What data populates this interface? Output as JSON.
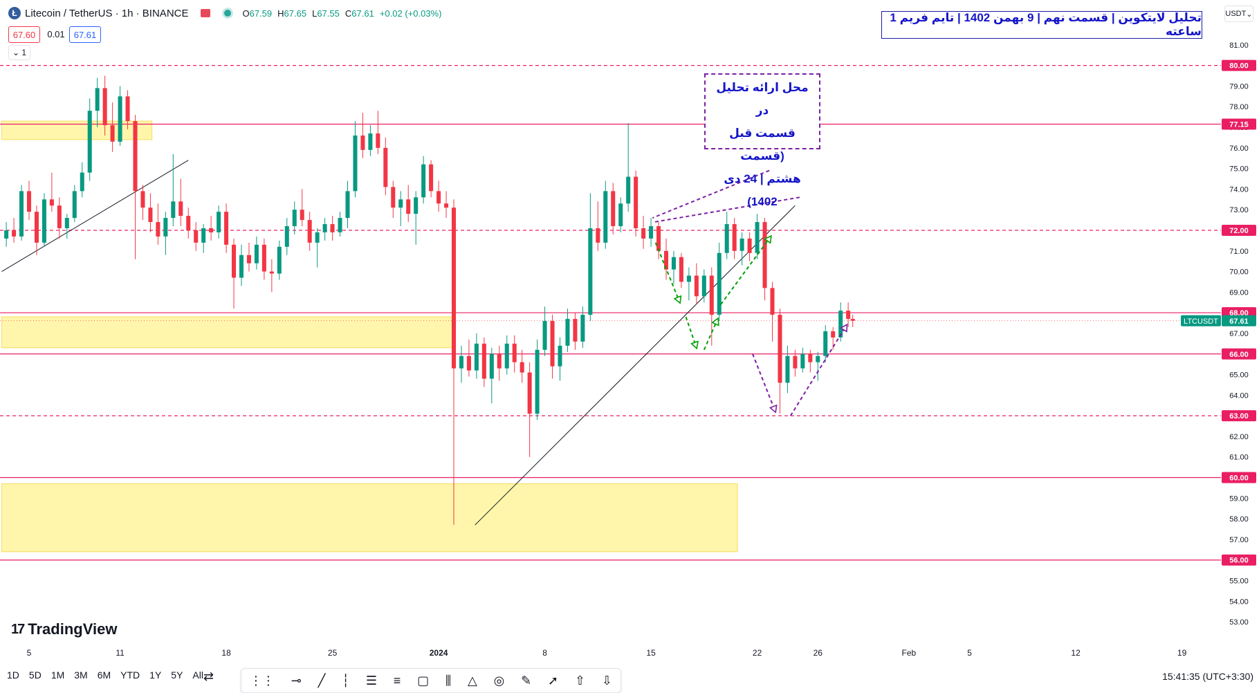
{
  "header": {
    "symbol": "Litecoin / TetherUS · 1h · BINANCE",
    "ohlc": {
      "o_label": "O",
      "o": "67.59",
      "h_label": "H",
      "h": "67.65",
      "l_label": "L",
      "l": "67.55",
      "c_label": "C",
      "c": "67.61",
      "change": "+0.02 (+0.03%)"
    },
    "bid": "67.60",
    "spread": "0.01",
    "ask": "67.61",
    "collapse_label": "1"
  },
  "currency_label": "USDT",
  "chart_title": "تحلیل لایتکوین | قسمت نهم | 9 بهمن 1402 | تایم فریم 1 ساعته",
  "annotation_lines": [
    "محل ارائه تحلیل در",
    "قسمت قبل (قسمت",
    "هشتم | 24 دی 1402)"
  ],
  "brand": "TradingView",
  "time_ranges": [
    "1D",
    "5D",
    "1M",
    "3M",
    "6M",
    "YTD",
    "1Y",
    "5Y",
    "All"
  ],
  "clock": "15:41:35 (UTC+3:30)",
  "colors": {
    "up": "#089981",
    "down": "#f23645",
    "level": "#e91e63",
    "zone": "#fff59d",
    "zone_border": "#f5d742",
    "note": "#7b1fa2",
    "green_arrow": "#00a000",
    "title": "#1414c8"
  },
  "chart_data": {
    "type": "candlestick",
    "symbol": "LTCUSDT",
    "ylim": [
      52.5,
      81.9
    ],
    "y_ticks": [
      "53.00",
      "54.00",
      "55.00",
      "56.00",
      "57.00",
      "58.00",
      "59.00",
      "60.00",
      "61.00",
      "62.00",
      "63.00",
      "64.00",
      "65.00",
      "66.00",
      "67.00",
      "68.00",
      "69.00",
      "70.00",
      "71.00",
      "72.00",
      "73.00",
      "74.00",
      "75.00",
      "76.00",
      "77.00",
      "78.00",
      "79.00",
      "80.00",
      "81.00"
    ],
    "x_ticks": [
      {
        "label": "5",
        "i": 0
      },
      {
        "label": "11",
        "i": 6
      },
      {
        "label": "18",
        "i": 13
      },
      {
        "label": "25",
        "i": 20
      },
      {
        "label": "2024",
        "i": 27
      },
      {
        "label": "8",
        "i": 34
      },
      {
        "label": "15",
        "i": 41
      },
      {
        "label": "22",
        "i": 48
      },
      {
        "label": "26",
        "i": 52
      },
      {
        "label": "Feb",
        "i": 58
      },
      {
        "label": "5",
        "i": 62
      },
      {
        "label": "12",
        "i": 69
      },
      {
        "label": "19",
        "i": 76
      }
    ],
    "last_price": {
      "label": "LTCUSDT",
      "value": 67.61,
      "text": "67.61"
    },
    "horizontal_levels": [
      {
        "value": 80.0,
        "text": "80.00",
        "style": "dashed"
      },
      {
        "value": 77.15,
        "text": "77.15",
        "style": "solid"
      },
      {
        "value": 72.0,
        "text": "72.00",
        "style": "dashed"
      },
      {
        "value": 68.0,
        "text": "68.00",
        "style": "solid"
      },
      {
        "value": 66.0,
        "text": "66.00",
        "style": "solid"
      },
      {
        "value": 63.0,
        "text": "63.00",
        "style": "dashed"
      },
      {
        "value": 60.0,
        "text": "60.00",
        "style": "solid"
      },
      {
        "value": 56.0,
        "text": "56.00",
        "style": "solid"
      }
    ],
    "zones": [
      {
        "i_from": -1.8,
        "i_to": 8.1,
        "top": 77.3,
        "bottom": 76.4
      },
      {
        "i_from": -1.8,
        "i_to": 27.9,
        "top": 67.8,
        "bottom": 66.3
      },
      {
        "i_from": -1.8,
        "i_to": 46.7,
        "top": 59.7,
        "bottom": 56.4
      }
    ],
    "trendlines": [
      {
        "from": [
          -1.8,
          70.0
        ],
        "to": [
          10.5,
          75.4
        ]
      },
      {
        "from": [
          29.4,
          57.7
        ],
        "to": [
          50.5,
          73.2
        ]
      }
    ],
    "candles": [
      {
        "i": -1.5,
        "o": 71.6,
        "h": 72.4,
        "l": 71.2,
        "c": 72.0
      },
      {
        "i": -1.0,
        "o": 72.0,
        "h": 72.6,
        "l": 71.4,
        "c": 71.7
      },
      {
        "i": -0.5,
        "o": 71.7,
        "h": 74.2,
        "l": 71.5,
        "c": 73.9
      },
      {
        "i": 0,
        "o": 73.9,
        "h": 74.4,
        "l": 72.5,
        "c": 72.9
      },
      {
        "i": 0.5,
        "o": 72.9,
        "h": 73.2,
        "l": 70.8,
        "c": 71.4
      },
      {
        "i": 1,
        "o": 71.4,
        "h": 73.8,
        "l": 71.2,
        "c": 73.5
      },
      {
        "i": 1.5,
        "o": 73.5,
        "h": 74.8,
        "l": 72.9,
        "c": 73.2
      },
      {
        "i": 2,
        "o": 73.2,
        "h": 73.6,
        "l": 71.6,
        "c": 72.1
      },
      {
        "i": 2.5,
        "o": 72.1,
        "h": 72.8,
        "l": 71.6,
        "c": 72.6
      },
      {
        "i": 3,
        "o": 72.6,
        "h": 74.2,
        "l": 72.4,
        "c": 73.9
      },
      {
        "i": 3.5,
        "o": 73.9,
        "h": 75.3,
        "l": 73.6,
        "c": 74.8
      },
      {
        "i": 4,
        "o": 74.8,
        "h": 78.4,
        "l": 74.4,
        "c": 77.8
      },
      {
        "i": 4.5,
        "o": 77.8,
        "h": 79.4,
        "l": 77.0,
        "c": 78.9
      },
      {
        "i": 5,
        "o": 78.9,
        "h": 79.5,
        "l": 76.6,
        "c": 77.1
      },
      {
        "i": 5.5,
        "o": 77.1,
        "h": 78.2,
        "l": 75.8,
        "c": 76.3
      },
      {
        "i": 6,
        "o": 76.3,
        "h": 79.0,
        "l": 76.1,
        "c": 78.5
      },
      {
        "i": 6.5,
        "o": 78.5,
        "h": 78.8,
        "l": 76.9,
        "c": 77.3
      },
      {
        "i": 7,
        "o": 77.3,
        "h": 77.6,
        "l": 70.6,
        "c": 73.9
      },
      {
        "i": 7.5,
        "o": 73.9,
        "h": 74.2,
        "l": 72.5,
        "c": 73.1
      },
      {
        "i": 8,
        "o": 73.1,
        "h": 73.8,
        "l": 71.9,
        "c": 72.4
      },
      {
        "i": 8.5,
        "o": 72.4,
        "h": 73.3,
        "l": 71.3,
        "c": 71.7
      },
      {
        "i": 9,
        "o": 71.7,
        "h": 72.9,
        "l": 70.8,
        "c": 72.6
      },
      {
        "i": 9.5,
        "o": 72.6,
        "h": 75.7,
        "l": 72.2,
        "c": 73.4
      },
      {
        "i": 10,
        "o": 73.4,
        "h": 74.5,
        "l": 72.2,
        "c": 72.7
      },
      {
        "i": 10.5,
        "o": 72.7,
        "h": 73.1,
        "l": 71.6,
        "c": 72.0
      },
      {
        "i": 11,
        "o": 72.0,
        "h": 72.4,
        "l": 71.0,
        "c": 71.4
      },
      {
        "i": 11.5,
        "o": 71.4,
        "h": 72.3,
        "l": 70.9,
        "c": 72.1
      },
      {
        "i": 12,
        "o": 72.1,
        "h": 72.7,
        "l": 71.5,
        "c": 71.9
      },
      {
        "i": 12.5,
        "o": 71.9,
        "h": 73.2,
        "l": 71.6,
        "c": 72.9
      },
      {
        "i": 13,
        "o": 72.9,
        "h": 73.3,
        "l": 70.9,
        "c": 71.3
      },
      {
        "i": 13.5,
        "o": 71.3,
        "h": 71.6,
        "l": 68.2,
        "c": 69.7
      },
      {
        "i": 14,
        "o": 69.7,
        "h": 71.3,
        "l": 69.3,
        "c": 70.8
      },
      {
        "i": 14.5,
        "o": 70.8,
        "h": 71.4,
        "l": 70.0,
        "c": 70.4
      },
      {
        "i": 15,
        "o": 70.4,
        "h": 71.7,
        "l": 70.1,
        "c": 71.3
      },
      {
        "i": 15.5,
        "o": 71.3,
        "h": 71.6,
        "l": 69.6,
        "c": 70.0
      },
      {
        "i": 16,
        "o": 70.0,
        "h": 70.6,
        "l": 69.0,
        "c": 69.9
      },
      {
        "i": 16.5,
        "o": 69.9,
        "h": 71.5,
        "l": 69.6,
        "c": 71.2
      },
      {
        "i": 17,
        "o": 71.2,
        "h": 72.6,
        "l": 70.8,
        "c": 72.2
      },
      {
        "i": 17.5,
        "o": 72.2,
        "h": 73.4,
        "l": 71.8,
        "c": 73.0
      },
      {
        "i": 18,
        "o": 73.0,
        "h": 74.0,
        "l": 72.2,
        "c": 72.5
      },
      {
        "i": 18.5,
        "o": 72.5,
        "h": 72.9,
        "l": 71.0,
        "c": 71.4
      },
      {
        "i": 19,
        "o": 71.4,
        "h": 72.1,
        "l": 70.2,
        "c": 71.9
      },
      {
        "i": 19.5,
        "o": 71.9,
        "h": 72.6,
        "l": 71.5,
        "c": 72.3
      },
      {
        "i": 20,
        "o": 72.3,
        "h": 72.7,
        "l": 71.5,
        "c": 71.9
      },
      {
        "i": 20.5,
        "o": 71.9,
        "h": 72.9,
        "l": 71.7,
        "c": 72.6
      },
      {
        "i": 21,
        "o": 72.6,
        "h": 74.4,
        "l": 72.1,
        "c": 73.9
      },
      {
        "i": 21.5,
        "o": 73.9,
        "h": 77.3,
        "l": 73.6,
        "c": 76.6
      },
      {
        "i": 22,
        "o": 76.6,
        "h": 77.7,
        "l": 75.5,
        "c": 75.9
      },
      {
        "i": 22.5,
        "o": 75.9,
        "h": 77.1,
        "l": 75.6,
        "c": 76.7
      },
      {
        "i": 23,
        "o": 76.7,
        "h": 77.8,
        "l": 75.7,
        "c": 76.0
      },
      {
        "i": 23.5,
        "o": 76.0,
        "h": 76.5,
        "l": 73.7,
        "c": 74.1
      },
      {
        "i": 24,
        "o": 74.1,
        "h": 74.4,
        "l": 72.6,
        "c": 73.1
      },
      {
        "i": 24.5,
        "o": 73.1,
        "h": 73.9,
        "l": 72.2,
        "c": 73.5
      },
      {
        "i": 25,
        "o": 73.5,
        "h": 74.2,
        "l": 72.4,
        "c": 72.8
      },
      {
        "i": 25.5,
        "o": 72.8,
        "h": 73.9,
        "l": 71.3,
        "c": 73.6
      },
      {
        "i": 26,
        "o": 73.6,
        "h": 75.6,
        "l": 73.3,
        "c": 75.2
      },
      {
        "i": 26.5,
        "o": 75.2,
        "h": 75.4,
        "l": 73.6,
        "c": 73.9
      },
      {
        "i": 27,
        "o": 73.9,
        "h": 74.4,
        "l": 72.9,
        "c": 73.3
      },
      {
        "i": 27.5,
        "o": 73.3,
        "h": 73.9,
        "l": 72.6,
        "c": 73.1
      },
      {
        "i": 28,
        "o": 73.1,
        "h": 73.5,
        "l": 57.7,
        "c": 65.3
      },
      {
        "i": 28.5,
        "o": 65.3,
        "h": 66.4,
        "l": 64.6,
        "c": 65.9
      },
      {
        "i": 29,
        "o": 65.9,
        "h": 66.7,
        "l": 64.9,
        "c": 65.2
      },
      {
        "i": 29.5,
        "o": 65.2,
        "h": 67.0,
        "l": 64.8,
        "c": 66.5
      },
      {
        "i": 30,
        "o": 66.5,
        "h": 66.8,
        "l": 64.4,
        "c": 64.8
      },
      {
        "i": 30.5,
        "o": 64.8,
        "h": 66.3,
        "l": 63.6,
        "c": 66.0
      },
      {
        "i": 31,
        "o": 66.0,
        "h": 66.4,
        "l": 64.7,
        "c": 65.3
      },
      {
        "i": 31.5,
        "o": 65.3,
        "h": 66.9,
        "l": 65.0,
        "c": 66.5
      },
      {
        "i": 32,
        "o": 66.5,
        "h": 66.9,
        "l": 65.1,
        "c": 65.6
      },
      {
        "i": 32.5,
        "o": 65.6,
        "h": 66.2,
        "l": 64.6,
        "c": 65.1
      },
      {
        "i": 33,
        "o": 65.1,
        "h": 65.6,
        "l": 61.0,
        "c": 63.1
      },
      {
        "i": 33.5,
        "o": 63.1,
        "h": 66.7,
        "l": 62.8,
        "c": 66.2
      },
      {
        "i": 34,
        "o": 66.2,
        "h": 68.3,
        "l": 65.9,
        "c": 67.6
      },
      {
        "i": 34.5,
        "o": 67.6,
        "h": 67.9,
        "l": 64.8,
        "c": 65.4
      },
      {
        "i": 35,
        "o": 65.4,
        "h": 66.8,
        "l": 64.7,
        "c": 66.4
      },
      {
        "i": 35.5,
        "o": 66.4,
        "h": 68.2,
        "l": 66.1,
        "c": 67.7
      },
      {
        "i": 36,
        "o": 67.7,
        "h": 68.0,
        "l": 66.2,
        "c": 66.6
      },
      {
        "i": 36.5,
        "o": 66.6,
        "h": 68.3,
        "l": 66.3,
        "c": 67.9
      },
      {
        "i": 37,
        "o": 67.9,
        "h": 73.8,
        "l": 67.6,
        "c": 72.1
      },
      {
        "i": 37.5,
        "o": 72.1,
        "h": 73.4,
        "l": 71.0,
        "c": 71.4
      },
      {
        "i": 38,
        "o": 71.4,
        "h": 74.4,
        "l": 71.1,
        "c": 73.9
      },
      {
        "i": 38.5,
        "o": 73.9,
        "h": 74.3,
        "l": 71.8,
        "c": 72.2
      },
      {
        "i": 39,
        "o": 72.2,
        "h": 73.6,
        "l": 71.9,
        "c": 73.3
      },
      {
        "i": 39.5,
        "o": 73.3,
        "h": 77.2,
        "l": 72.9,
        "c": 74.6
      },
      {
        "i": 40,
        "o": 74.6,
        "h": 74.9,
        "l": 71.7,
        "c": 72.1
      },
      {
        "i": 40.5,
        "o": 72.1,
        "h": 72.7,
        "l": 71.1,
        "c": 71.6
      },
      {
        "i": 41,
        "o": 71.6,
        "h": 72.6,
        "l": 71.2,
        "c": 72.2
      },
      {
        "i": 41.5,
        "o": 72.2,
        "h": 72.4,
        "l": 70.6,
        "c": 71.0
      },
      {
        "i": 42,
        "o": 71.0,
        "h": 71.6,
        "l": 69.6,
        "c": 70.1
      },
      {
        "i": 42.5,
        "o": 70.1,
        "h": 71.0,
        "l": 69.4,
        "c": 70.7
      },
      {
        "i": 43,
        "o": 70.7,
        "h": 70.9,
        "l": 69.2,
        "c": 69.5
      },
      {
        "i": 43.5,
        "o": 69.5,
        "h": 70.2,
        "l": 68.6,
        "c": 69.8
      },
      {
        "i": 44,
        "o": 69.8,
        "h": 70.4,
        "l": 68.4,
        "c": 68.8
      },
      {
        "i": 44.5,
        "o": 68.8,
        "h": 70.1,
        "l": 68.5,
        "c": 69.8
      },
      {
        "i": 45,
        "o": 69.8,
        "h": 70.2,
        "l": 66.4,
        "c": 67.9
      },
      {
        "i": 45.5,
        "o": 67.9,
        "h": 71.4,
        "l": 67.6,
        "c": 70.9
      },
      {
        "i": 46,
        "o": 70.9,
        "h": 72.9,
        "l": 70.6,
        "c": 72.3
      },
      {
        "i": 46.5,
        "o": 72.3,
        "h": 72.6,
        "l": 70.6,
        "c": 71.0
      },
      {
        "i": 47,
        "o": 71.0,
        "h": 71.9,
        "l": 70.3,
        "c": 71.6
      },
      {
        "i": 47.5,
        "o": 71.6,
        "h": 71.9,
        "l": 70.5,
        "c": 70.9
      },
      {
        "i": 48,
        "o": 70.9,
        "h": 72.8,
        "l": 70.6,
        "c": 72.4
      },
      {
        "i": 48.5,
        "o": 72.4,
        "h": 72.6,
        "l": 68.6,
        "c": 69.2
      },
      {
        "i": 49,
        "o": 69.2,
        "h": 69.5,
        "l": 66.6,
        "c": 67.9
      },
      {
        "i": 49.5,
        "o": 67.9,
        "h": 68.2,
        "l": 63.1,
        "c": 64.6
      },
      {
        "i": 50,
        "o": 64.6,
        "h": 66.4,
        "l": 64.1,
        "c": 65.9
      },
      {
        "i": 50.5,
        "o": 65.9,
        "h": 66.2,
        "l": 64.9,
        "c": 65.3
      },
      {
        "i": 51,
        "o": 65.3,
        "h": 66.3,
        "l": 65.1,
        "c": 66.0
      },
      {
        "i": 51.5,
        "o": 66.0,
        "h": 66.2,
        "l": 65.1,
        "c": 65.6
      },
      {
        "i": 52,
        "o": 65.6,
        "h": 66.1,
        "l": 64.7,
        "c": 65.9
      },
      {
        "i": 52.5,
        "o": 65.9,
        "h": 67.4,
        "l": 65.6,
        "c": 67.1
      },
      {
        "i": 53,
        "o": 67.1,
        "h": 67.3,
        "l": 66.2,
        "c": 66.8
      },
      {
        "i": 53.5,
        "o": 66.8,
        "h": 68.5,
        "l": 66.6,
        "c": 68.1
      },
      {
        "i": 54,
        "o": 68.1,
        "h": 68.5,
        "l": 67.3,
        "c": 67.7
      },
      {
        "i": 54.3,
        "o": 67.7,
        "h": 67.9,
        "l": 67.3,
        "c": 67.61
      }
    ]
  }
}
